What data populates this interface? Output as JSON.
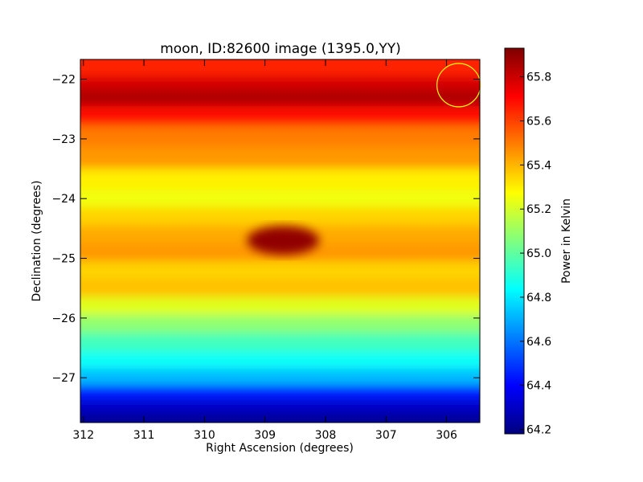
{
  "chart_data": {
    "type": "heatmap",
    "title": "moon, ID:82600 image (1395.0,YY)",
    "xlabel": "Right Ascension (degrees)",
    "ylabel": "Declination (degrees)",
    "colorbar_label": "Power in Kelvin",
    "xlim": [
      312.05,
      305.45
    ],
    "ylim": [
      -27.75,
      -21.67
    ],
    "x_ticks": [
      312,
      311,
      310,
      309,
      308,
      307,
      306
    ],
    "y_ticks": [
      -22,
      -23,
      -24,
      -25,
      -26,
      -27
    ],
    "colorbar_range": [
      64.18,
      65.93
    ],
    "colorbar_ticks": [
      64.2,
      64.4,
      64.6,
      64.8,
      65.0,
      65.2,
      65.4,
      65.6,
      65.8
    ],
    "colormap": "jet",
    "grid": false,
    "declination_profile": [
      {
        "dec": -21.85,
        "value": 65.65
      },
      {
        "dec": -22.05,
        "value": 65.78
      },
      {
        "dec": -22.3,
        "value": 65.85
      },
      {
        "dec": -22.6,
        "value": 65.7
      },
      {
        "dec": -22.95,
        "value": 65.5
      },
      {
        "dec": -23.3,
        "value": 65.45
      },
      {
        "dec": -23.7,
        "value": 65.3
      },
      {
        "dec": -24.0,
        "value": 65.25
      },
      {
        "dec": -24.3,
        "value": 65.35
      },
      {
        "dec": -24.6,
        "value": 65.42
      },
      {
        "dec": -24.9,
        "value": 65.45
      },
      {
        "dec": -25.2,
        "value": 65.35
      },
      {
        "dec": -25.5,
        "value": 65.38
      },
      {
        "dec": -25.8,
        "value": 65.22
      },
      {
        "dec": -26.1,
        "value": 65.08
      },
      {
        "dec": -26.4,
        "value": 64.95
      },
      {
        "dec": -26.7,
        "value": 64.85
      },
      {
        "dec": -27.0,
        "value": 64.72
      },
      {
        "dec": -27.25,
        "value": 64.45
      },
      {
        "dec": -27.5,
        "value": 64.3
      },
      {
        "dec": -27.7,
        "value": 64.22
      }
    ],
    "hotspot": {
      "ra": 308.7,
      "dec": -24.7,
      "value": 65.9
    },
    "circle_marker": {
      "ra": 305.8,
      "dec": -22.1,
      "color": "#ffff00"
    }
  }
}
